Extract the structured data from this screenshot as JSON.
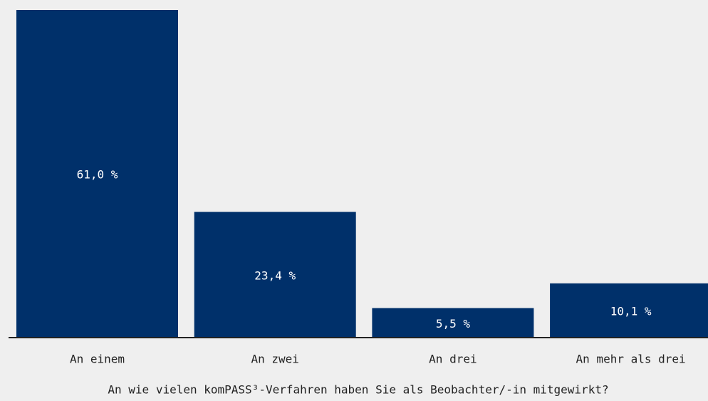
{
  "chart_data": {
    "type": "bar",
    "x_label": "An wie vielen komPASS³-Verfahren haben Sie als Beobachter/-in mitgewirkt?",
    "categories": [
      "An einem",
      "An zwei",
      "An drei",
      "An mehr als drei"
    ],
    "values": [
      61.0,
      23.4,
      5.5,
      10.1
    ],
    "value_labels": [
      "61,0 %",
      "23,4 %",
      "5,5 %",
      "10,1 %"
    ],
    "color": "#00306a"
  }
}
